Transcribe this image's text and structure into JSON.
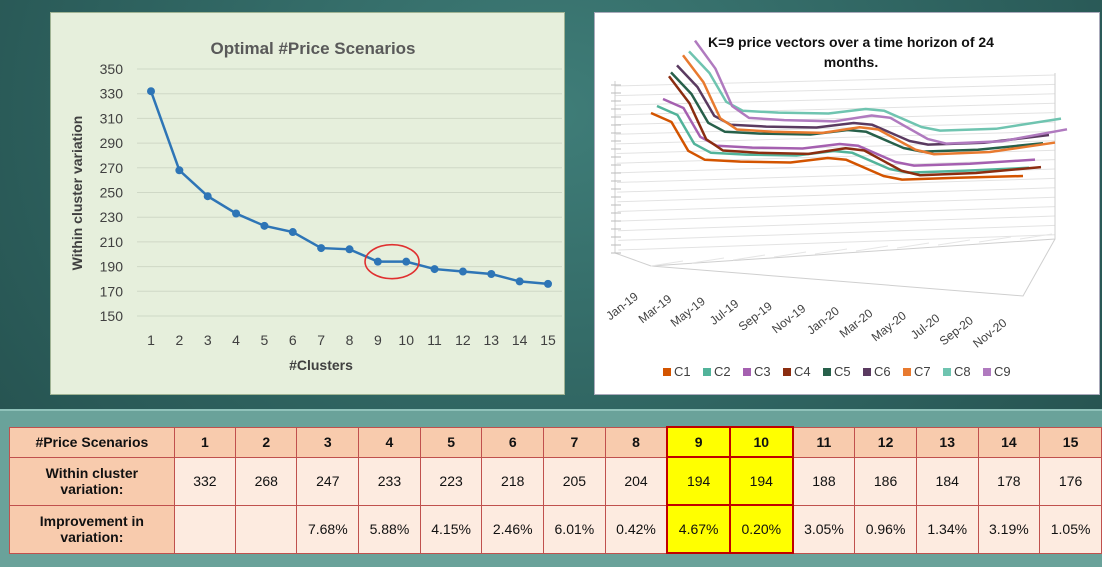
{
  "chart_data": [
    {
      "type": "line",
      "title": "Optimal #Price Scenarios",
      "xlabel": "#Clusters",
      "ylabel": "Within cluster variation",
      "x": [
        1,
        2,
        3,
        4,
        5,
        6,
        7,
        8,
        9,
        10,
        11,
        12,
        13,
        14,
        15
      ],
      "values": [
        332,
        268,
        247,
        233,
        223,
        218,
        205,
        204,
        194,
        194,
        188,
        186,
        184,
        178,
        176
      ],
      "ylim": [
        150,
        350
      ],
      "yticks": [
        150,
        170,
        190,
        210,
        230,
        250,
        270,
        290,
        310,
        330,
        350
      ],
      "highlight": [
        9,
        10
      ],
      "color": "#2e75b6",
      "highlight_color": "#e03030"
    },
    {
      "type": "line",
      "title": "K=9 price vectors over a time horizon of 24 months.",
      "xlabels": [
        "Jan-19",
        "Mar-19",
        "May-19",
        "Jul-19",
        "Sep-19",
        "Nov-19",
        "Jan-20",
        "Mar-20",
        "May-20",
        "Jul-20",
        "Sep-20",
        "Nov-20"
      ],
      "legend": [
        "C1",
        "C2",
        "C3",
        "C4",
        "C5",
        "C6",
        "C7",
        "C8",
        "C9"
      ],
      "colors": [
        "#d35400",
        "#52b39a",
        "#a560b0",
        "#8b2d10",
        "#27604a",
        "#5a3a60",
        "#e87a2f",
        "#6fc4b0",
        "#b07abf"
      ]
    }
  ],
  "table": {
    "header_label": "#Price Scenarios",
    "clusters": [
      "1",
      "2",
      "3",
      "4",
      "5",
      "6",
      "7",
      "8",
      "9",
      "10",
      "11",
      "12",
      "13",
      "14",
      "15"
    ],
    "row2_label_line1": "Within cluster",
    "row2_label_line2": "variation:",
    "variation": [
      "332",
      "268",
      "247",
      "233",
      "223",
      "218",
      "205",
      "204",
      "194",
      "194",
      "188",
      "186",
      "184",
      "178",
      "176"
    ],
    "row3_label_line1": "Improvement in",
    "row3_label_line2": "variation:",
    "improvement": [
      "",
      "",
      "7.68%",
      "5.88%",
      "4.15%",
      "2.46%",
      "6.01%",
      "0.42%",
      "4.67%",
      "0.20%",
      "3.05%",
      "0.96%",
      "1.34%",
      "3.19%",
      "1.05%"
    ]
  }
}
